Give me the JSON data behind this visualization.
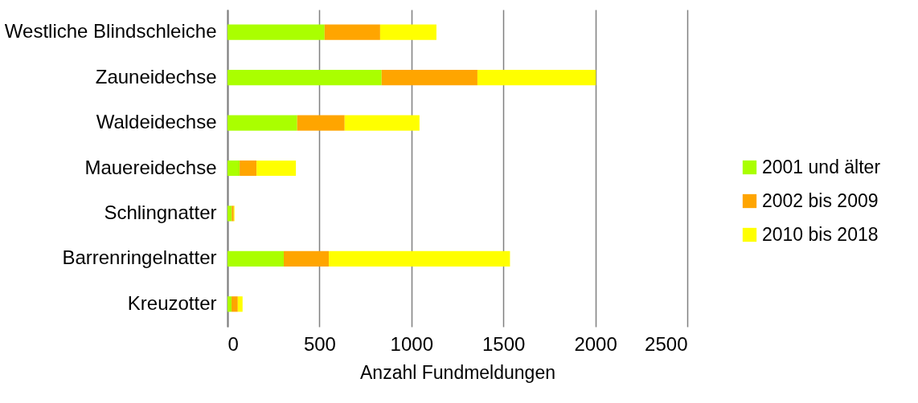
{
  "chart_data": {
    "type": "bar",
    "orientation": "horizontal",
    "stacked": true,
    "categories": [
      "Westliche Blindschleiche",
      "Zauneidechse",
      "Waldeidechse",
      "Mauereidechse",
      "Schlingnatter",
      "Barrenringelnatter",
      "Kreuzotter"
    ],
    "series": [
      {
        "name": "2001 und älter",
        "color": "#aaff00",
        "values": [
          528,
          838,
          379,
          66,
          23,
          306,
          22
        ]
      },
      {
        "name": "2002 bis 2009",
        "color": "#ffa500",
        "values": [
          302,
          521,
          258,
          92,
          11,
          245,
          34
        ]
      },
      {
        "name": "2010 bis 2018",
        "color": "#ffff00",
        "values": [
          306,
          644,
          407,
          214,
          4,
          985,
          26
        ]
      }
    ],
    "xlabel": "Anzahl Fundmeldungen",
    "xlim": [
      0,
      2500
    ],
    "xticks": [
      0,
      500,
      {
        "value": 1000,
        "label": "1000"
      },
      {
        "value": 1500,
        "label": "1500"
      },
      {
        "value": 2000,
        "label": "2000"
      },
      {
        "value": 2500,
        "label": "2500"
      }
    ],
    "grid": "x",
    "legend": "right"
  }
}
